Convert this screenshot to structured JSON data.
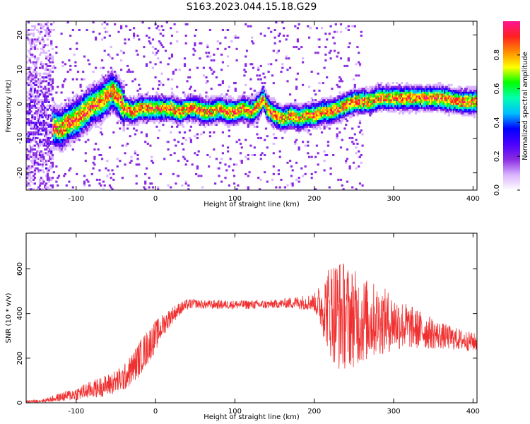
{
  "title": "S163.2023.044.15.18.G29",
  "colors": {
    "snr_line": "#f03030",
    "frame": "#000000",
    "background": "#ffffff"
  },
  "chart_data": [
    {
      "type": "heatmap",
      "xlabel": "Height of straight line (km)",
      "ylabel": "Frequency (Hz)",
      "xlim": [
        -163,
        405
      ],
      "ylim": [
        -25,
        24
      ],
      "x_ticks": [
        "-100",
        "0",
        "100",
        "200",
        "300",
        "400"
      ],
      "y_ticks": [
        "-20",
        "-10",
        "0",
        "10",
        "20"
      ],
      "colorbar": {
        "label": "Normalized spectral amplitude",
        "ticks": [
          "0.0",
          "0.2",
          "0.4",
          "0.6",
          "0.8"
        ],
        "range": [
          0,
          1
        ],
        "colors": [
          "#ffffff",
          "#d9b3ff",
          "#8a2be2",
          "#4b00ff",
          "#0000ff",
          "#00bfff",
          "#00ffb0",
          "#00ff00",
          "#ffff00",
          "#ff8c00",
          "#ff2020",
          "#ff1493"
        ]
      },
      "ridge": {
        "x": [
          -135,
          -120,
          -110,
          -100,
          -90,
          -80,
          -70,
          -60,
          -55,
          -50,
          -45,
          -40,
          -30,
          -20,
          -10,
          0,
          10,
          20,
          30,
          40,
          50,
          60,
          70,
          80,
          90,
          100,
          110,
          120,
          130,
          135,
          140,
          150,
          160,
          170,
          180,
          190,
          200,
          210,
          220,
          230,
          240,
          250,
          260,
          270,
          280,
          290,
          300,
          320,
          340,
          360,
          380,
          400
        ],
        "y": [
          -6,
          -7,
          -5,
          -4,
          -2,
          0,
          1,
          3,
          4,
          3,
          1,
          -1,
          -2,
          -1,
          -1,
          -1,
          -1,
          -1,
          -2,
          -1,
          -1,
          -2,
          -2,
          -1,
          -2,
          -2,
          -1,
          -2,
          0,
          2,
          -1,
          -3,
          -4,
          -3,
          -4,
          -3,
          -3,
          -2,
          -2,
          -1,
          0,
          1,
          1,
          1,
          2,
          2,
          2,
          2,
          2,
          2,
          1,
          1
        ]
      },
      "noise_region_x": [
        -163,
        -130
      ]
    },
    {
      "type": "line",
      "xlabel": "Height of straight line (km)",
      "ylabel": "SNR (10 * v/v)",
      "xlim": [
        -163,
        405
      ],
      "ylim": [
        0,
        760
      ],
      "x_ticks": [
        "-100",
        "0",
        "100",
        "200",
        "300",
        "400"
      ],
      "y_ticks": [
        "0",
        "200",
        "400",
        "600"
      ],
      "series": [
        {
          "x": [
            -163,
            -140,
            -120,
            -100,
            -80,
            -60,
            -40,
            -30,
            -20,
            -10,
            0,
            10,
            20,
            30,
            40,
            50,
            60,
            80,
            100,
            120,
            140,
            160,
            180,
            200,
            210,
            220,
            230,
            240,
            250,
            260,
            270,
            280,
            300,
            320,
            340,
            360,
            380,
            405
          ],
          "y": [
            5,
            10,
            25,
            40,
            60,
            80,
            110,
            150,
            200,
            250,
            300,
            350,
            390,
            420,
            440,
            445,
            440,
            440,
            440,
            440,
            440,
            445,
            450,
            450,
            430,
            420,
            400,
            390,
            380,
            370,
            370,
            370,
            360,
            340,
            320,
            300,
            285,
            270
          ],
          "spread": [
            5,
            8,
            20,
            30,
            40,
            50,
            60,
            70,
            80,
            80,
            70,
            50,
            40,
            30,
            25,
            20,
            20,
            20,
            20,
            20,
            20,
            20,
            30,
            40,
            120,
            220,
            260,
            240,
            220,
            200,
            180,
            160,
            130,
            100,
            80,
            60,
            50,
            40
          ]
        }
      ]
    }
  ]
}
